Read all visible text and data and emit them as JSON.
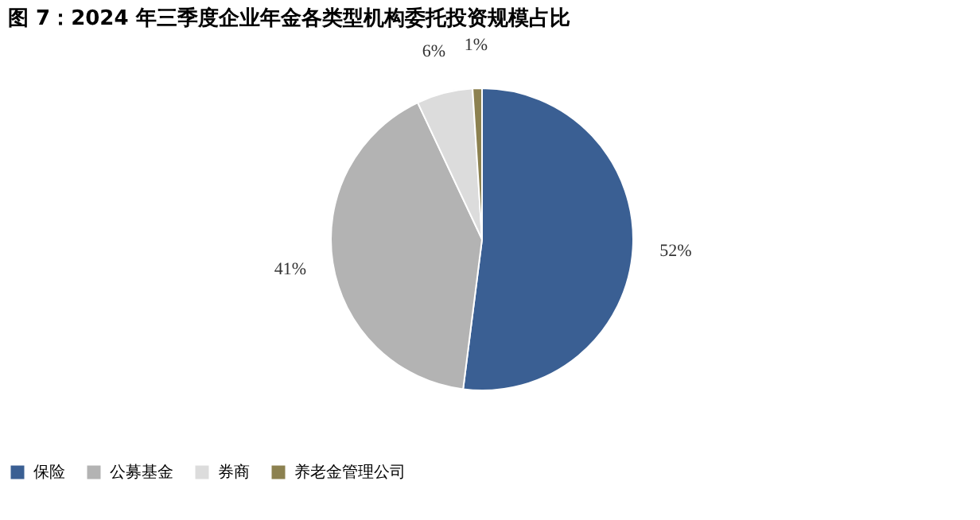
{
  "chart_data": {
    "type": "pie",
    "title": "图 7：2024 年三季度企业年金各类型机构委托投资规模占比",
    "categories": [
      "保险",
      "公募基金",
      "券商",
      "养老金管理公司"
    ],
    "values": [
      52,
      41,
      6,
      1
    ],
    "value_labels": [
      "52%",
      "41%",
      "6%",
      "1%"
    ],
    "colors": [
      "#3a5f93",
      "#b3b3b3",
      "#dcdcdc",
      "#8c8150"
    ],
    "legend": "bottom"
  }
}
